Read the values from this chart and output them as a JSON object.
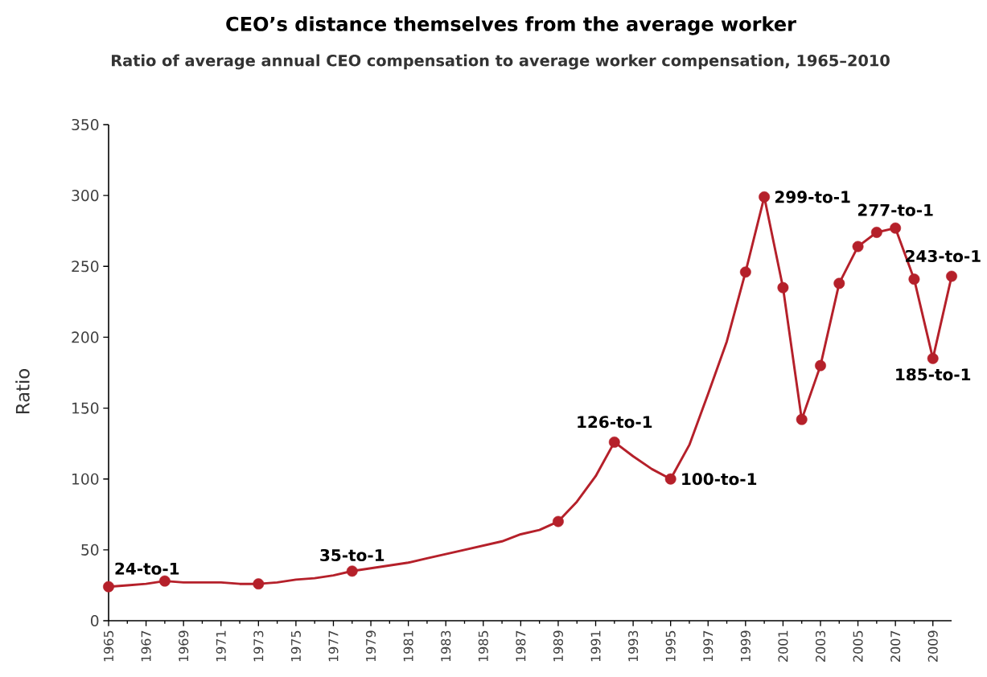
{
  "chart_data": {
    "type": "line",
    "title": "CEO’s distance themselves from the average worker",
    "subtitle": "Ratio of  average annual CEO compensation to average worker compensation, 1965–2010",
    "ylabel": "Ratio",
    "x": [
      1965,
      1966,
      1967,
      1968,
      1969,
      1970,
      1971,
      1972,
      1973,
      1974,
      1975,
      1976,
      1977,
      1978,
      1979,
      1980,
      1981,
      1982,
      1983,
      1984,
      1985,
      1986,
      1987,
      1988,
      1989,
      1990,
      1991,
      1992,
      1993,
      1994,
      1995,
      1996,
      1997,
      1998,
      1999,
      2000,
      2001,
      2002,
      2003,
      2004,
      2005,
      2006,
      2007,
      2008,
      2009,
      2010
    ],
    "series": [
      {
        "marker": "none",
        "color": "#b5202a",
        "values": [
          24,
          25,
          26,
          28,
          27,
          27,
          27,
          26,
          26,
          27,
          29,
          30,
          32,
          35,
          37,
          39,
          41,
          44,
          47,
          50,
          53,
          56,
          61,
          64,
          70,
          84,
          102,
          126,
          116,
          107,
          100,
          124,
          160,
          197,
          246,
          299,
          235,
          142,
          180,
          238,
          264,
          274,
          277,
          241,
          185,
          243
        ]
      },
      {
        "type": "scatter",
        "marker": "circle",
        "color": "#b5202a",
        "values": [
          24,
          null,
          null,
          28,
          null,
          null,
          null,
          null,
          26,
          null,
          null,
          null,
          null,
          35,
          null,
          null,
          null,
          null,
          null,
          null,
          null,
          null,
          null,
          null,
          70,
          null,
          null,
          126,
          null,
          null,
          100,
          null,
          null,
          null,
          246,
          299,
          235,
          142,
          180,
          238,
          264,
          274,
          277,
          241,
          185,
          243
        ]
      }
    ],
    "xlim": [
      1965,
      2010
    ],
    "xticks": [
      1965,
      1967,
      1969,
      1971,
      1973,
      1975,
      1977,
      1979,
      1981,
      1983,
      1985,
      1987,
      1989,
      1991,
      1993,
      1995,
      1997,
      1999,
      2001,
      2003,
      2005,
      2007,
      2009
    ],
    "ylim": [
      0,
      350
    ],
    "yticks": [
      0,
      50,
      100,
      150,
      200,
      250,
      300,
      350
    ],
    "grid": false,
    "line_style": "solid",
    "annotations": [
      {
        "text": "24-to-1",
        "x": 1965,
        "y": 24
      },
      {
        "text": "35-to-1",
        "x": 1978,
        "y": 35
      },
      {
        "text": "126-to-1",
        "x": 1992,
        "y": 126
      },
      {
        "text": "100-to-1",
        "x": 1995,
        "y": 100
      },
      {
        "text": "299-to-1",
        "x": 2000,
        "y": 299
      },
      {
        "text": "277-to-1",
        "x": 2007,
        "y": 277
      },
      {
        "text": "243-to-1",
        "x": 2010,
        "y": 243
      },
      {
        "text": "185-to-1",
        "x": 2009,
        "y": 185
      }
    ]
  }
}
